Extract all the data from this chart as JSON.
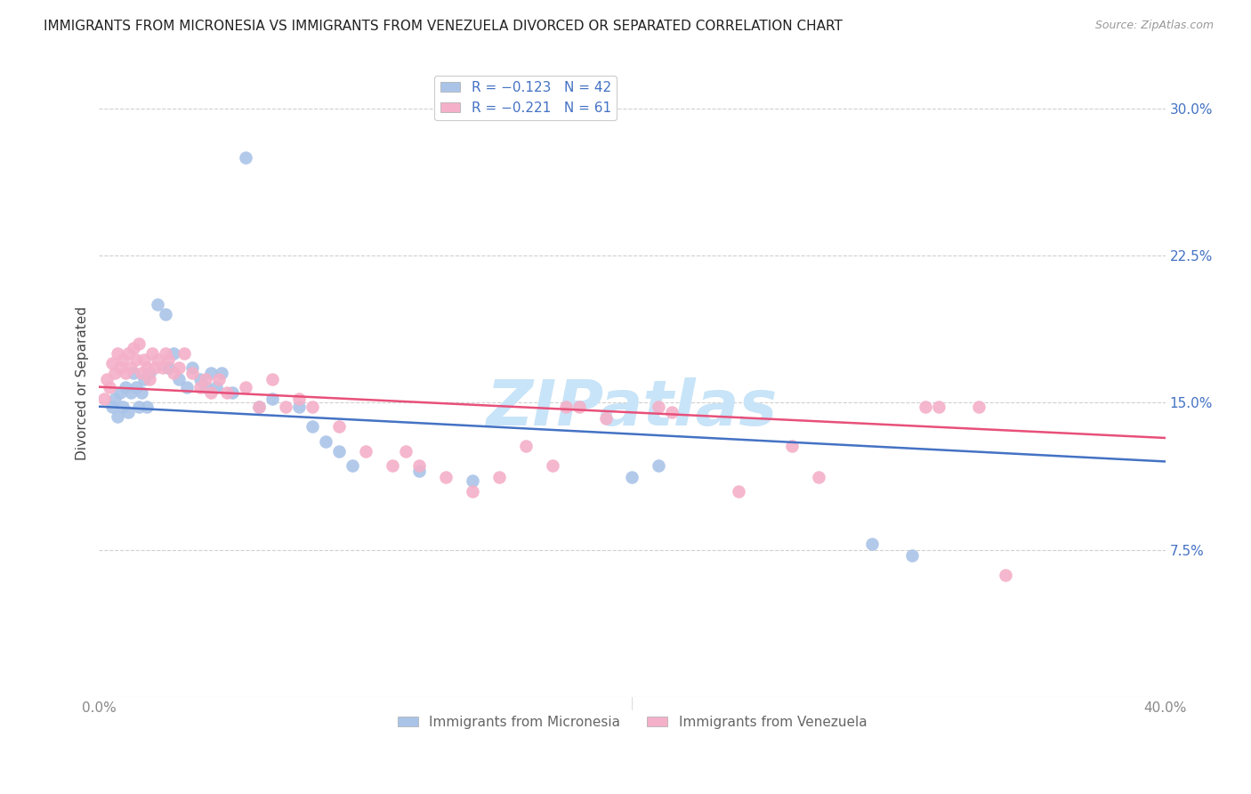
{
  "title": "IMMIGRANTS FROM MICRONESIA VS IMMIGRANTS FROM VENEZUELA DIVORCED OR SEPARATED CORRELATION CHART",
  "source_text": "Source: ZipAtlas.com",
  "ylabel": "Divorced or Separated",
  "y_ticks": [
    0.0,
    0.075,
    0.15,
    0.225,
    0.3
  ],
  "y_tick_labels": [
    "",
    "7.5%",
    "15.0%",
    "22.5%",
    "30.0%"
  ],
  "xlim": [
    0.0,
    0.4
  ],
  "ylim": [
    0.0,
    0.32
  ],
  "legend_label_micronesia": "Immigrants from Micronesia",
  "legend_label_venezuela": "Immigrants from Venezuela",
  "scatter_micronesia": [
    [
      0.005,
      0.148
    ],
    [
      0.006,
      0.152
    ],
    [
      0.007,
      0.143
    ],
    [
      0.008,
      0.155
    ],
    [
      0.009,
      0.148
    ],
    [
      0.01,
      0.158
    ],
    [
      0.011,
      0.145
    ],
    [
      0.012,
      0.155
    ],
    [
      0.013,
      0.165
    ],
    [
      0.014,
      0.158
    ],
    [
      0.015,
      0.148
    ],
    [
      0.016,
      0.155
    ],
    [
      0.017,
      0.162
    ],
    [
      0.018,
      0.148
    ],
    [
      0.019,
      0.165
    ],
    [
      0.022,
      0.2
    ],
    [
      0.025,
      0.195
    ],
    [
      0.026,
      0.168
    ],
    [
      0.028,
      0.175
    ],
    [
      0.03,
      0.162
    ],
    [
      0.033,
      0.158
    ],
    [
      0.035,
      0.168
    ],
    [
      0.038,
      0.162
    ],
    [
      0.04,
      0.158
    ],
    [
      0.042,
      0.165
    ],
    [
      0.044,
      0.158
    ],
    [
      0.046,
      0.165
    ],
    [
      0.05,
      0.155
    ],
    [
      0.06,
      0.148
    ],
    [
      0.065,
      0.152
    ],
    [
      0.075,
      0.148
    ],
    [
      0.08,
      0.138
    ],
    [
      0.085,
      0.13
    ],
    [
      0.09,
      0.125
    ],
    [
      0.095,
      0.118
    ],
    [
      0.12,
      0.115
    ],
    [
      0.14,
      0.11
    ],
    [
      0.2,
      0.112
    ],
    [
      0.21,
      0.118
    ],
    [
      0.29,
      0.078
    ],
    [
      0.305,
      0.072
    ],
    [
      0.055,
      0.275
    ]
  ],
  "scatter_venezuela": [
    [
      0.002,
      0.152
    ],
    [
      0.003,
      0.162
    ],
    [
      0.004,
      0.158
    ],
    [
      0.005,
      0.17
    ],
    [
      0.006,
      0.165
    ],
    [
      0.007,
      0.175
    ],
    [
      0.008,
      0.168
    ],
    [
      0.009,
      0.172
    ],
    [
      0.01,
      0.165
    ],
    [
      0.011,
      0.175
    ],
    [
      0.012,
      0.168
    ],
    [
      0.013,
      0.178
    ],
    [
      0.014,
      0.172
    ],
    [
      0.015,
      0.18
    ],
    [
      0.016,
      0.165
    ],
    [
      0.017,
      0.172
    ],
    [
      0.018,
      0.168
    ],
    [
      0.019,
      0.162
    ],
    [
      0.02,
      0.175
    ],
    [
      0.021,
      0.168
    ],
    [
      0.022,
      0.172
    ],
    [
      0.024,
      0.168
    ],
    [
      0.025,
      0.175
    ],
    [
      0.026,
      0.172
    ],
    [
      0.028,
      0.165
    ],
    [
      0.03,
      0.168
    ],
    [
      0.032,
      0.175
    ],
    [
      0.035,
      0.165
    ],
    [
      0.038,
      0.158
    ],
    [
      0.04,
      0.162
    ],
    [
      0.042,
      0.155
    ],
    [
      0.045,
      0.162
    ],
    [
      0.048,
      0.155
    ],
    [
      0.055,
      0.158
    ],
    [
      0.06,
      0.148
    ],
    [
      0.065,
      0.162
    ],
    [
      0.07,
      0.148
    ],
    [
      0.075,
      0.152
    ],
    [
      0.08,
      0.148
    ],
    [
      0.09,
      0.138
    ],
    [
      0.1,
      0.125
    ],
    [
      0.11,
      0.118
    ],
    [
      0.115,
      0.125
    ],
    [
      0.12,
      0.118
    ],
    [
      0.13,
      0.112
    ],
    [
      0.14,
      0.105
    ],
    [
      0.15,
      0.112
    ],
    [
      0.16,
      0.128
    ],
    [
      0.17,
      0.118
    ],
    [
      0.175,
      0.148
    ],
    [
      0.18,
      0.148
    ],
    [
      0.19,
      0.142
    ],
    [
      0.21,
      0.148
    ],
    [
      0.215,
      0.145
    ],
    [
      0.24,
      0.105
    ],
    [
      0.26,
      0.128
    ],
    [
      0.27,
      0.112
    ],
    [
      0.31,
      0.148
    ],
    [
      0.315,
      0.148
    ],
    [
      0.33,
      0.148
    ],
    [
      0.34,
      0.062
    ]
  ],
  "trendline_micronesia": {
    "x_start": 0.0,
    "y_start": 0.148,
    "x_end": 0.4,
    "y_end": 0.12
  },
  "trendline_venezuela": {
    "x_start": 0.0,
    "y_start": 0.158,
    "x_end": 0.4,
    "y_end": 0.132
  },
  "dot_color_micronesia": "#aac4e8",
  "dot_color_venezuela": "#f4b0c8",
  "line_color_micronesia": "#4472c4",
  "line_color_venezuela": "#e8507a",
  "background_color": "#ffffff",
  "title_fontsize": 11,
  "source_fontsize": 9,
  "axis_label_fontsize": 11,
  "tick_fontsize": 11,
  "watermark_text": "ZIPatlas",
  "watermark_color": "#c8e4f8",
  "watermark_fontsize": 52
}
